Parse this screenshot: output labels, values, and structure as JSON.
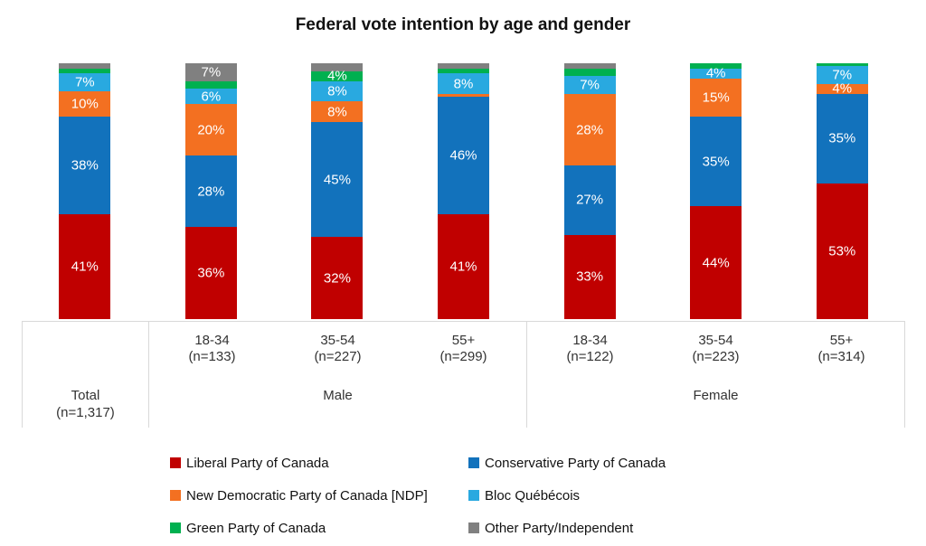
{
  "chart_data": {
    "type": "bar",
    "subtype": "100%-stacked-column",
    "title": "Federal vote intention by age and gender",
    "value_suffix": "%",
    "label_min_value_shown": 4,
    "legend_position": "bottom",
    "gridlines": false,
    "label_color": "#FFFFFF",
    "axis_text_color": "#333333",
    "axis_border_color": "#D9D9D9",
    "categories": [
      {
        "age_label": "",
        "n_label": "",
        "group": "Total"
      },
      {
        "age_label": "18-34",
        "n_label": "(n=133)",
        "group": "Male"
      },
      {
        "age_label": "35-54",
        "n_label": "(n=227)",
        "group": "Male"
      },
      {
        "age_label": "55+",
        "n_label": "(n=299)",
        "group": "Male"
      },
      {
        "age_label": "18-34",
        "n_label": "(n=122)",
        "group": "Female"
      },
      {
        "age_label": "35-54",
        "n_label": "(n=223)",
        "group": "Female"
      },
      {
        "age_label": "55+",
        "n_label": "(n=314)",
        "group": "Female"
      }
    ],
    "axis_groups": [
      {
        "group": "Total",
        "label_lines": [
          "Total",
          "(n=1,317)"
        ],
        "span": 1
      },
      {
        "group": "Male",
        "label_lines": [
          "Male"
        ],
        "span": 3
      },
      {
        "group": "Female",
        "label_lines": [
          "Female"
        ],
        "span": 3
      }
    ],
    "series": [
      {
        "name": "Liberal Party of Canada",
        "color": "#C00000",
        "values": [
          41,
          36,
          32,
          41,
          33,
          44,
          53
        ]
      },
      {
        "name": "Conservative Party of Canada",
        "color": "#1272BC",
        "values": [
          38,
          28,
          45,
          46,
          27,
          35,
          35
        ]
      },
      {
        "name": "New Democratic Party of Canada [NDP]",
        "color": "#F37021",
        "values": [
          10,
          20,
          8,
          1,
          28,
          15,
          4
        ]
      },
      {
        "name": "Bloc Québécois",
        "color": "#29A9E0",
        "values": [
          7,
          6,
          8,
          8,
          7,
          4,
          7
        ]
      },
      {
        "name": "Green Party of Canada",
        "color": "#00B050",
        "values": [
          2,
          3,
          4,
          2,
          3,
          2,
          1
        ]
      },
      {
        "name": "Other Party/Independent",
        "color": "#808080",
        "values": [
          2,
          7,
          3,
          2,
          2,
          0,
          0
        ]
      }
    ]
  }
}
